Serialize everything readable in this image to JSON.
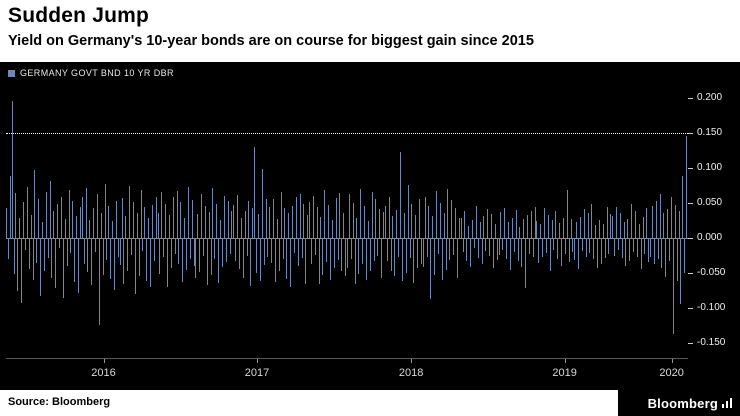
{
  "header": {
    "title": "Sudden Jump",
    "subtitle": "Yield on Germany's 10-year bonds are on course for biggest gain since 2015"
  },
  "legend": {
    "label": "GERMANY GOVT BND 10 YR DBR",
    "swatch_color": "#6f88ae"
  },
  "footer": {
    "source": "Source: Bloomberg",
    "brand": "Bloomberg"
  },
  "chart_data": {
    "type": "bar",
    "title": "Sudden Jump",
    "subtitle": "Yield on Germany's 10-year bonds are on course for biggest gain since 2015",
    "series_name": "GERMANY GOVT BND 10 YR DBR",
    "bar_color": "#6f88ae",
    "background_color": "#000000",
    "threshold_line": 0.15,
    "ylim": [
      -0.172,
      0.217
    ],
    "yticks": [
      "0.200",
      "0.150",
      "0.100",
      "0.050",
      "0.000",
      "-0.050",
      "-0.100",
      "-0.150"
    ],
    "xticks": [
      {
        "label": "2016",
        "pos": 0.143
      },
      {
        "label": "2017",
        "pos": 0.368
      },
      {
        "label": "2018",
        "pos": 0.594
      },
      {
        "label": "2019",
        "pos": 0.819
      },
      {
        "label": "2020",
        "pos": 0.976
      }
    ],
    "values": [
      0.042,
      -0.031,
      0.088,
      0.195,
      -0.052,
      0.064,
      -0.077,
      0.028,
      -0.093,
      0.051,
      -0.018,
      0.072,
      -0.045,
      0.033,
      -0.061,
      0.097,
      -0.036,
      0.055,
      -0.084,
      0.022,
      -0.048,
      0.066,
      -0.029,
      0.081,
      -0.057,
      0.038,
      -0.072,
      0.049,
      -0.015,
      0.059,
      -0.086,
      0.027,
      -0.041,
      0.069,
      -0.022,
      0.053,
      -0.064,
      0.031,
      -0.079,
      0.044,
      0.058,
      -0.037,
      0.071,
      -0.049,
      0.026,
      -0.068,
      0.043,
      -0.021,
      0.062,
      -0.125,
      0.035,
      -0.054,
      0.077,
      -0.032,
      0.046,
      -0.059,
      0.024,
      -0.075,
      0.052,
      -0.028,
      -0.039,
      0.057,
      -0.066,
      0.031,
      -0.047,
      0.074,
      -0.025,
      0.051,
      -0.08,
      0.036,
      -0.055,
      0.068,
      -0.019,
      0.044,
      -0.062,
      0.029,
      -0.071,
      0.047,
      -0.034,
      0.058,
      0.036,
      -0.052,
      0.065,
      -0.027,
      0.048,
      -0.07,
      0.033,
      -0.044,
      0.059,
      -0.023,
      0.067,
      -0.038,
      0.051,
      -0.063,
      0.028,
      -0.046,
      0.072,
      -0.031,
      0.054,
      -0.041,
      -0.058,
      0.034,
      -0.049,
      0.063,
      -0.026,
      0.045,
      -0.068,
      0.037,
      -0.053,
      0.071,
      -0.03,
      0.048,
      -0.065,
      0.025,
      -0.042,
      0.06,
      -0.035,
      0.052,
      -0.024,
      0.039,
      0.047,
      -0.033,
      0.061,
      -0.045,
      0.029,
      -0.057,
      0.038,
      -0.026,
      0.053,
      -0.069,
      0.042,
      0.13,
      -0.051,
      0.034,
      -0.062,
      0.098,
      -0.039,
      0.056,
      -0.028,
      0.044,
      -0.036,
      0.055,
      -0.064,
      0.027,
      -0.048,
      0.066,
      -0.031,
      0.043,
      -0.059,
      0.035,
      -0.07,
      0.046,
      -0.022,
      0.058,
      -0.04,
      0.063,
      -0.029,
      0.049,
      -0.067,
      0.032,
      0.051,
      -0.038,
      0.06,
      -0.025,
      0.044,
      -0.066,
      0.03,
      -0.054,
      0.068,
      -0.035,
      0.047,
      -0.06,
      0.026,
      -0.043,
      0.057,
      -0.032,
      0.064,
      -0.048,
      0.036,
      -0.055,
      -0.044,
      0.062,
      -0.03,
      0.05,
      -0.067,
      0.028,
      -0.052,
      0.07,
      -0.037,
      0.045,
      -0.06,
      0.024,
      -0.048,
      0.065,
      -0.033,
      0.055,
      -0.026,
      0.041,
      -0.058,
      0.037,
      0.045,
      -0.034,
      0.058,
      -0.047,
      0.031,
      -0.055,
      0.04,
      -0.027,
      0.122,
      -0.062,
      0.036,
      -0.051,
      0.075,
      -0.029,
      0.048,
      -0.065,
      0.033,
      -0.044,
      0.056,
      -0.038,
      -0.042,
      0.059,
      -0.028,
      0.046,
      -0.088,
      0.031,
      -0.053,
      0.067,
      -0.024,
      0.05,
      -0.061,
      0.035,
      -0.046,
      0.07,
      -0.032,
      0.054,
      -0.025,
      0.043,
      -0.057,
      0.029,
      0.028,
      -0.021,
      0.039,
      -0.033,
      0.017,
      -0.042,
      0.026,
      -0.015,
      0.045,
      -0.029,
      0.022,
      -0.038,
      0.031,
      -0.019,
      0.041,
      -0.026,
      0.034,
      -0.044,
      0.02,
      -0.032,
      -0.025,
      0.037,
      -0.018,
      0.043,
      -0.031,
      0.022,
      -0.046,
      0.028,
      -0.02,
      0.04,
      -0.034,
      0.016,
      -0.042,
      0.027,
      -0.072,
      0.033,
      -0.023,
      0.038,
      -0.028,
      0.044,
      0.024,
      -0.036,
      0.019,
      -0.028,
      0.042,
      -0.022,
      0.033,
      -0.047,
      0.025,
      -0.017,
      0.038,
      -0.03,
      0.021,
      -0.04,
      0.029,
      -0.024,
      0.068,
      -0.035,
      0.027,
      -0.02,
      -0.032,
      0.023,
      -0.045,
      0.03,
      -0.019,
      0.041,
      -0.027,
      0.035,
      -0.022,
      0.048,
      -0.031,
      0.018,
      -0.043,
      0.026,
      -0.037,
      0.02,
      -0.029,
      0.044,
      -0.024,
      0.034,
      0.031,
      -0.026,
      0.044,
      -0.018,
      0.036,
      -0.029,
      0.022,
      -0.041,
      0.027,
      -0.033,
      0.049,
      -0.021,
      0.038,
      -0.027,
      0.019,
      -0.045,
      0.03,
      -0.023,
      0.042,
      -0.035,
      -0.028,
      0.046,
      -0.038,
      0.052,
      -0.03,
      0.062,
      -0.044,
      0.035,
      -0.056,
      0.041,
      -0.033,
      0.058,
      -0.138,
      0.047,
      -0.062,
      0.039,
      -0.095,
      0.088,
      -0.051,
      0.145
    ]
  }
}
